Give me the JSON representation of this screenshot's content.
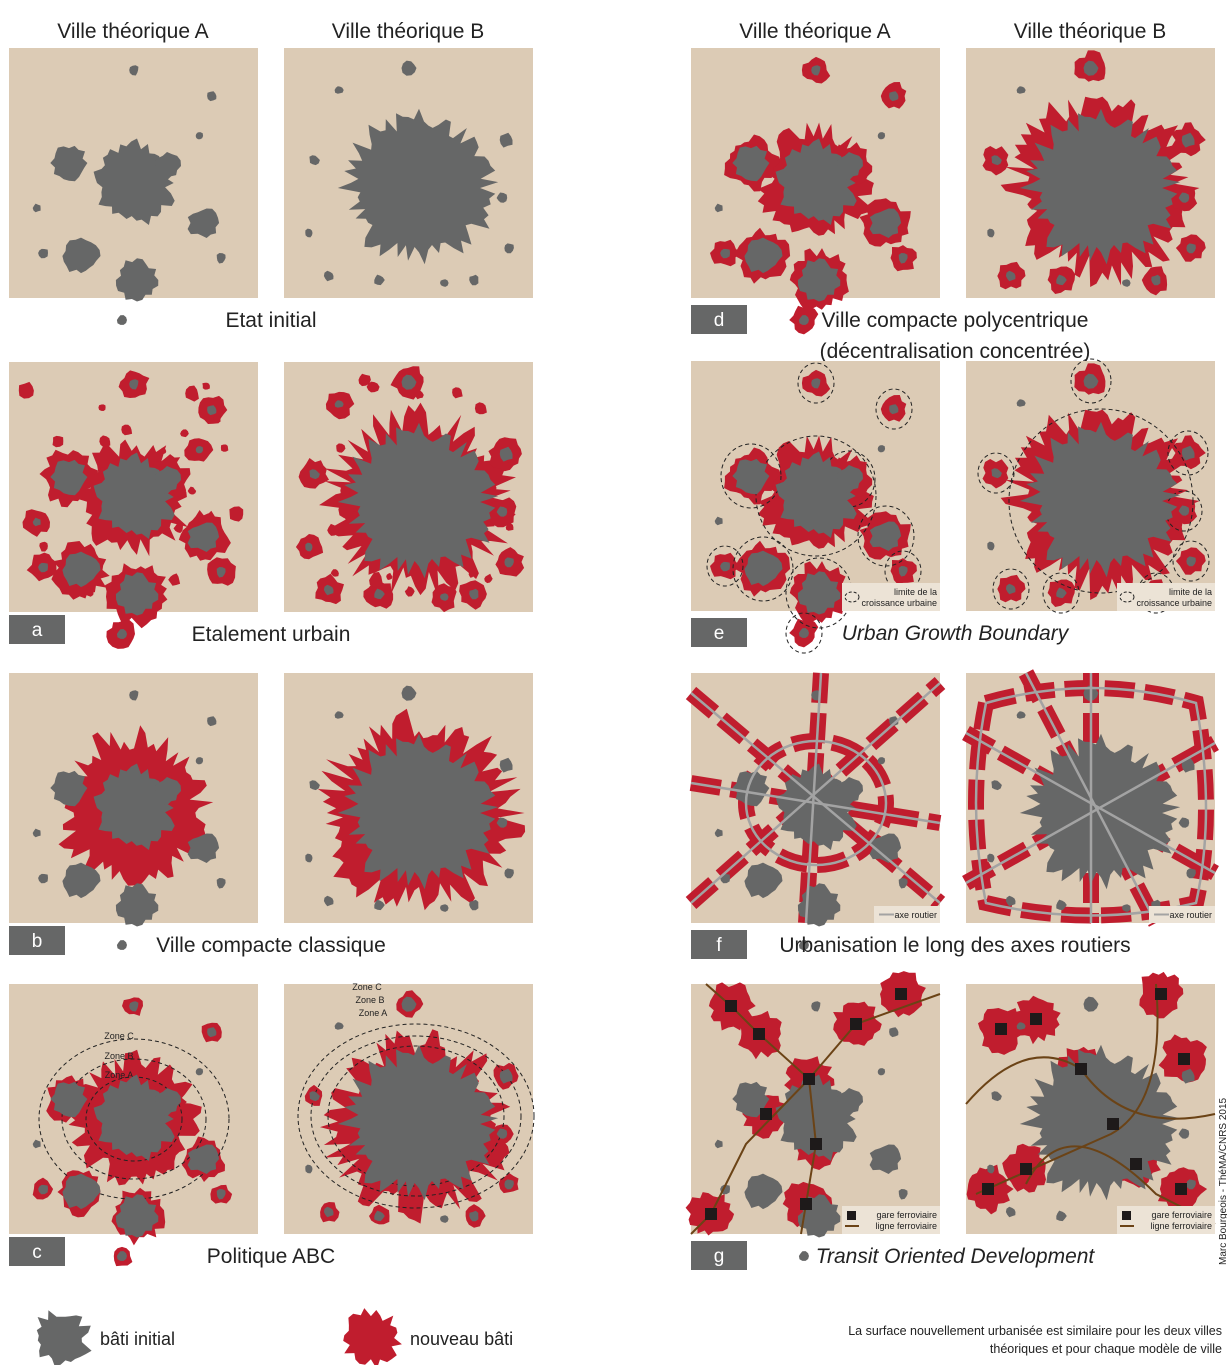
{
  "column_headers": {
    "left": [
      "Ville théorique A",
      "Ville théorique B"
    ],
    "right": [
      "Ville théorique A",
      "Ville théorique B"
    ]
  },
  "panels": [
    {
      "title": [
        "Etat initial"
      ]
    },
    {
      "letter": "a",
      "title": [
        "Etalement urbain"
      ]
    },
    {
      "letter": "b",
      "title": [
        "Ville compacte classique"
      ]
    },
    {
      "letter": "c",
      "title": [
        "Politique ABC"
      ],
      "zones": [
        "Zone C",
        "Zone B",
        "Zone A"
      ]
    },
    {
      "letter": "d",
      "title": [
        "Ville compacte polycentrique",
        "(décentralisation concentrée)"
      ]
    },
    {
      "letter": "e",
      "title": [
        "Urban Growth Boundary"
      ],
      "legend": [
        "limite de la",
        "croissance urbaine"
      ]
    },
    {
      "letter": "f",
      "title": [
        "Urbanisation le long des axes routiers"
      ],
      "legend": [
        "axe routier"
      ]
    },
    {
      "letter": "g",
      "title": [
        "Transit Oriented Development"
      ],
      "legend": [
        "gare ferroviaire",
        "ligne ferroviaire"
      ]
    }
  ],
  "legend": [
    "bâti initial",
    "nouveau bâti"
  ],
  "note": [
    "La surface nouvellement urbanisée est similaire pour les deux villes",
    "théoriques et pour chaque modèle de ville"
  ],
  "credit": "Marc Bourgeois - ThéMA/CNRS 2015"
}
